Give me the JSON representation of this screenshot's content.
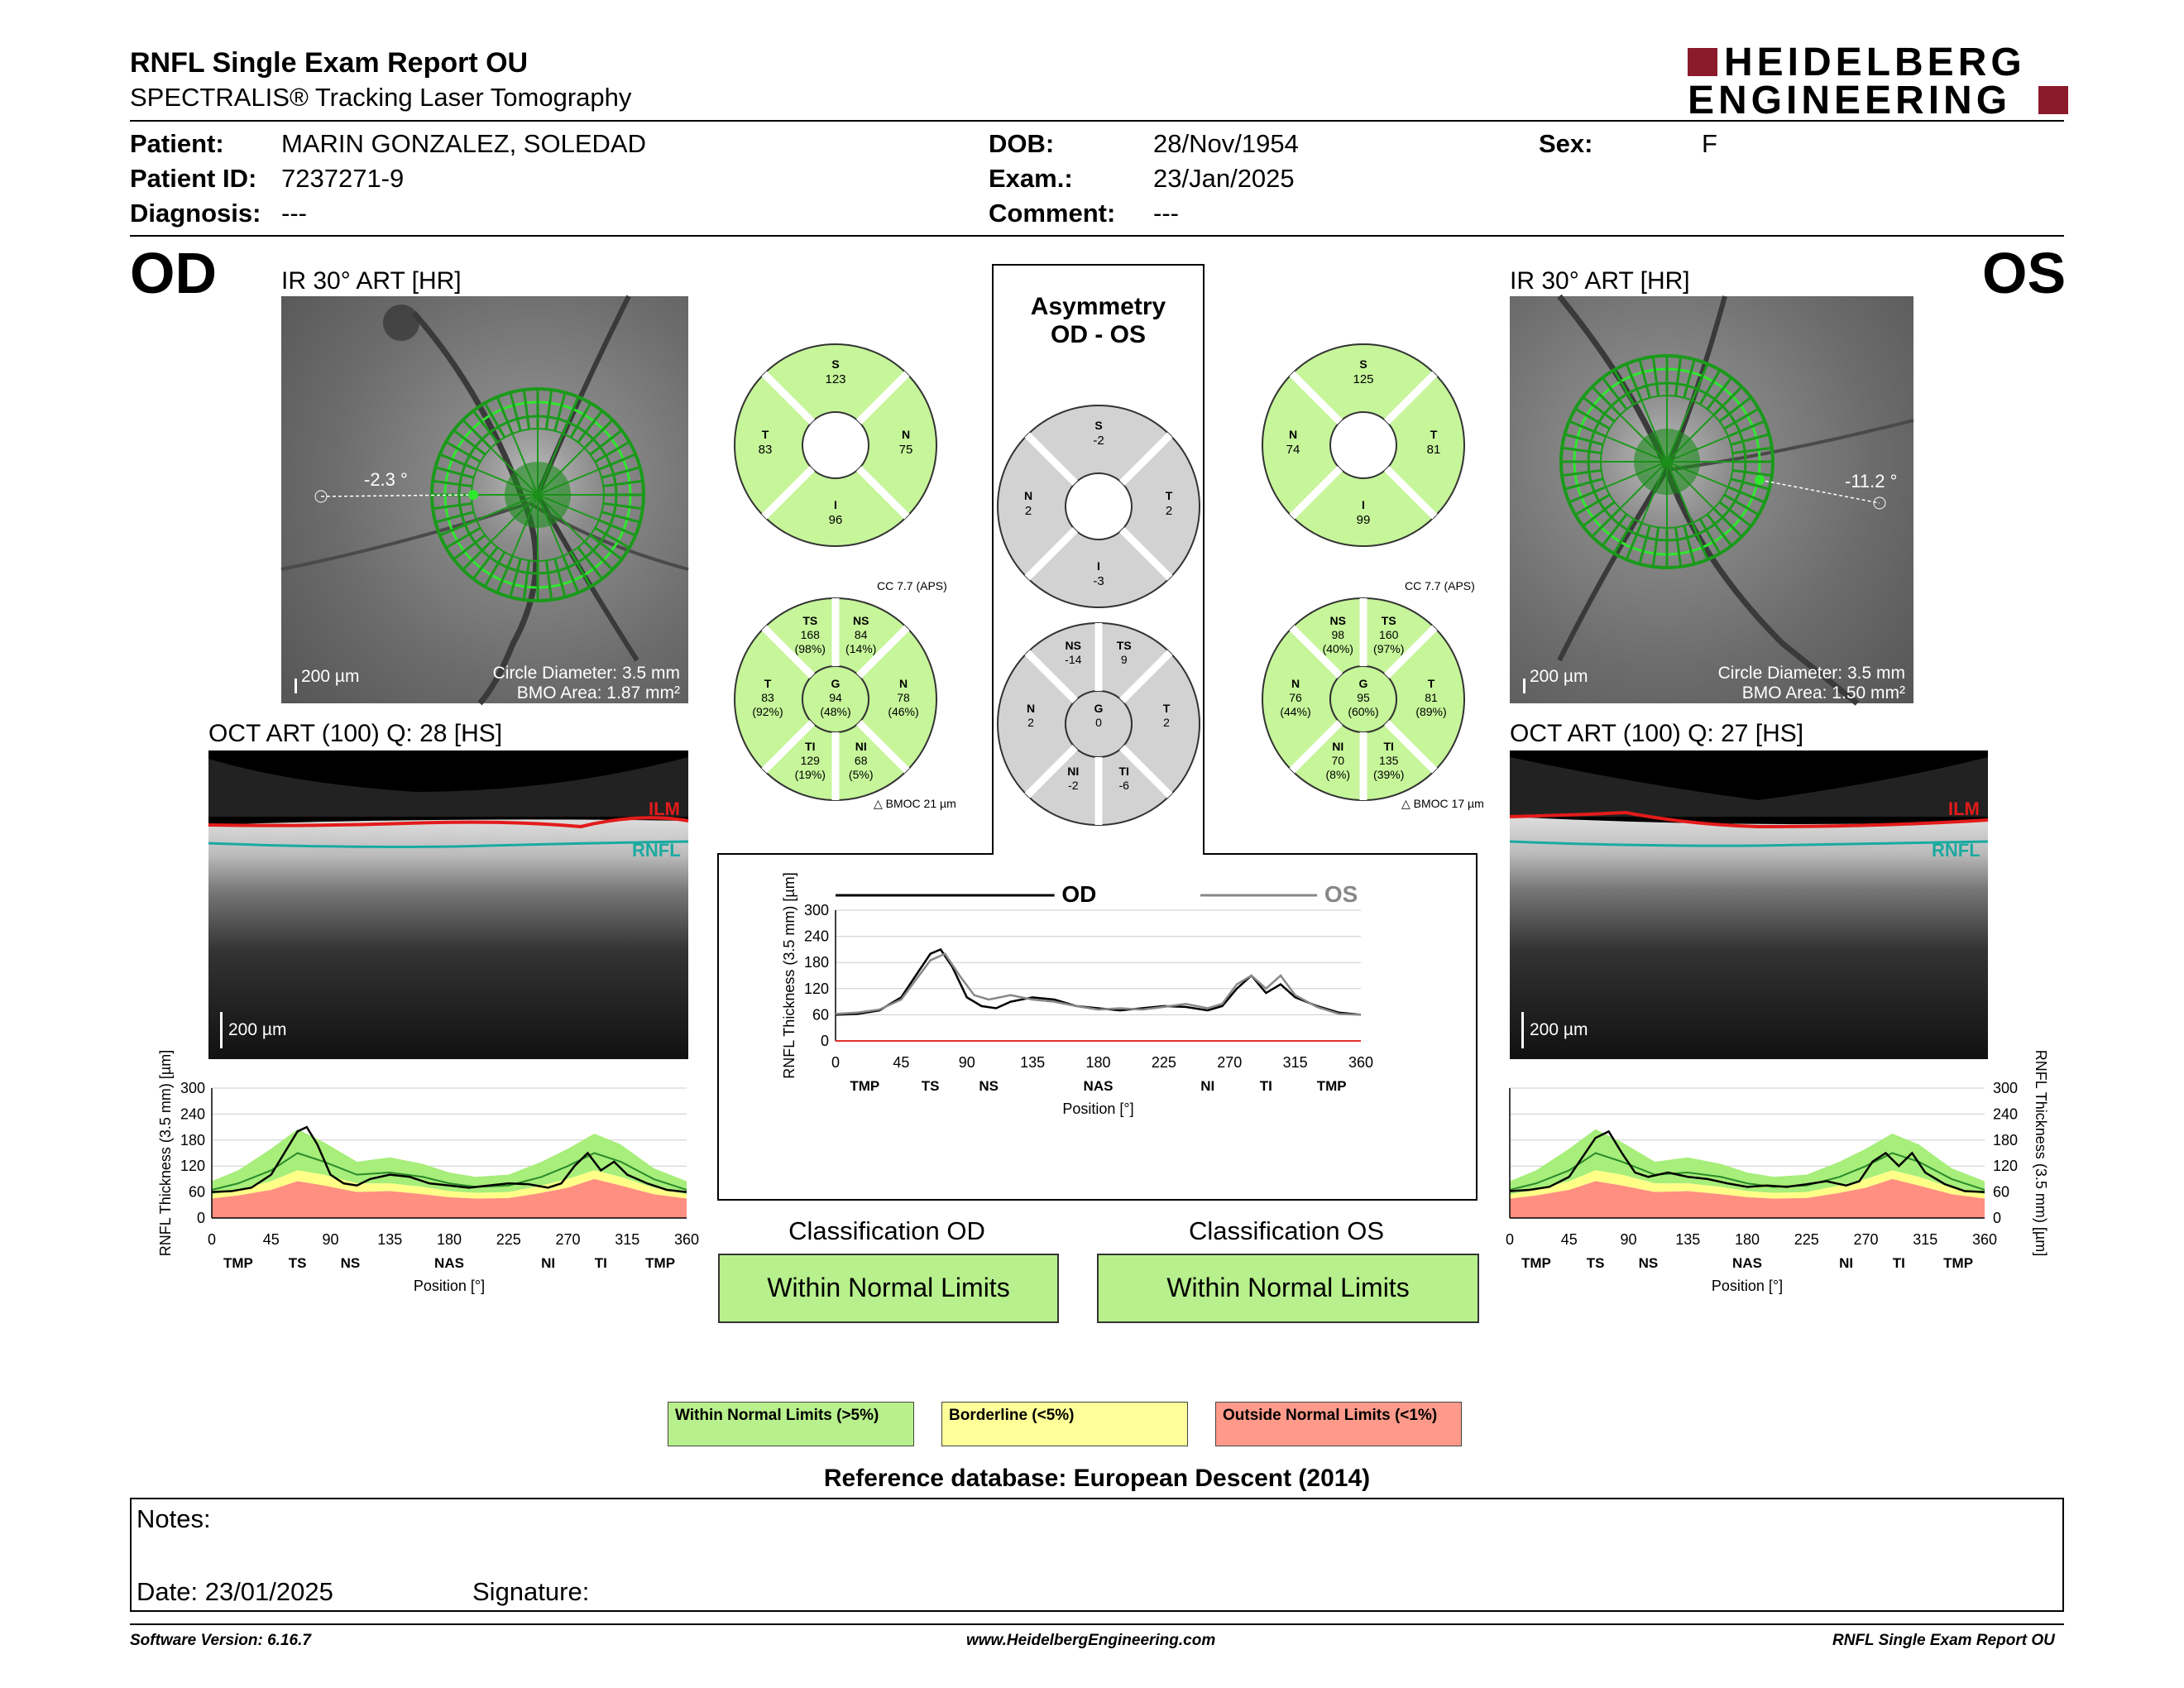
{
  "header": {
    "title": "RNFL Single Exam Report OU",
    "subtitle": "SPECTRALIS® Tracking Laser Tomography",
    "logo_line1": "HEIDELBERG",
    "logo_line2": "ENGINEERING",
    "brand_color": "#8b1a2b"
  },
  "patient": {
    "patient_label": "Patient:",
    "patient_value": "MARIN GONZALEZ, SOLEDAD",
    "id_label": "Patient ID:",
    "id_value": "7237271-9",
    "diagnosis_label": "Diagnosis:",
    "diagnosis_value": "---",
    "dob_label": "DOB:",
    "dob_value": "28/Nov/1954",
    "exam_label": "Exam.:",
    "exam_value": "23/Jan/2025",
    "comment_label": "Comment:",
    "comment_value": "---",
    "sex_label": "Sex:",
    "sex_value": "F"
  },
  "od": {
    "eye": "OD",
    "ir_caption": "IR 30° ART [HR]",
    "angle": "-2.3 °",
    "scale": "200 µm",
    "circle_diameter": "Circle Diameter: 3.5 mm",
    "bmo_area": "BMO Area: 1.87 mm²",
    "oct_caption": "OCT ART (100) Q: 28 [HS]",
    "ilm": "ILM",
    "rnfl": "RNFL",
    "oct_scale": "200 µm"
  },
  "os": {
    "eye": "OS",
    "ir_caption": "IR 30° ART [HR]",
    "angle": "-11.2 °",
    "scale": "200 µm",
    "circle_diameter": "Circle Diameter: 3.5 mm",
    "bmo_area": "BMO Area: 1.50 mm²",
    "oct_caption": "OCT ART (100) Q: 27 [HS]",
    "ilm": "ILM",
    "rnfl": "RNFL",
    "oct_scale": "200 µm"
  },
  "asymmetry": {
    "title1": "Asymmetry",
    "title2": "OD - OS"
  },
  "sectors": {
    "od_quad": {
      "S": "123",
      "N": "75",
      "I": "96",
      "T": "83"
    },
    "os_quad": {
      "S": "125",
      "T": "81",
      "I": "99",
      "N": "74"
    },
    "asym_quad": {
      "S": "-2",
      "T": "2",
      "I": "-3",
      "N": "2"
    },
    "od_six": {
      "TS": [
        "168",
        "(98%)"
      ],
      "NS": [
        "84",
        "(14%)"
      ],
      "N": [
        "78",
        "(46%)"
      ],
      "NI": [
        "68",
        "(5%)"
      ],
      "TI": [
        "129",
        "(19%)"
      ],
      "T": [
        "83",
        "(92%)"
      ],
      "G": [
        "94",
        "(48%)"
      ]
    },
    "os_six": {
      "NS": [
        "98",
        "(40%)"
      ],
      "TS": [
        "160",
        "(97%)"
      ],
      "T": [
        "81",
        "(89%)"
      ],
      "TI": [
        "135",
        "(39%)"
      ],
      "NI": [
        "70",
        "(8%)"
      ],
      "N": [
        "76",
        "(44%)"
      ],
      "G": [
        "95",
        "(60%)"
      ]
    },
    "asym_six": {
      "NS": "-14",
      "TS": "9",
      "T": "2",
      "TI": "-6",
      "NI": "-2",
      "N": "2",
      "G": "0"
    },
    "cc": "CC 7.7 (APS)",
    "od_bmoc": "BMOC 21 µm",
    "os_bmoc": "BMOC 17 µm",
    "green": "#c6f59a",
    "gray": "#d2d2d2"
  },
  "chart_data": [
    {
      "type": "line",
      "title": "",
      "ylabel": "RNFL Thickness (3.5 mm) [µm]",
      "xlabel": "Position [°]",
      "xlim": [
        0,
        360
      ],
      "ylim": [
        0,
        300
      ],
      "xticks": [
        0,
        45,
        90,
        135,
        180,
        225,
        270,
        315,
        360
      ],
      "yticks": [
        0,
        60,
        120,
        180,
        240,
        300
      ],
      "sector_labels": [
        {
          "x": 20,
          "label": "TMP"
        },
        {
          "x": 65,
          "label": "TS"
        },
        {
          "x": 105,
          "label": "NS"
        },
        {
          "x": 180,
          "label": "NAS"
        },
        {
          "x": 255,
          "label": "NI"
        },
        {
          "x": 295,
          "label": "TI"
        },
        {
          "x": 340,
          "label": "TMP"
        }
      ],
      "legend": [
        "OD",
        "OS"
      ],
      "series": [
        {
          "name": "OD",
          "color": "#000000",
          "x": [
            0,
            15,
            30,
            45,
            55,
            65,
            72,
            80,
            90,
            100,
            110,
            120,
            135,
            150,
            165,
            180,
            195,
            210,
            225,
            240,
            255,
            265,
            275,
            285,
            295,
            305,
            315,
            330,
            345,
            360
          ],
          "y": [
            60,
            62,
            70,
            100,
            150,
            200,
            210,
            170,
            100,
            80,
            75,
            90,
            100,
            95,
            80,
            75,
            70,
            75,
            80,
            78,
            70,
            80,
            120,
            150,
            110,
            130,
            100,
            80,
            65,
            60
          ]
        },
        {
          "name": "OS",
          "color": "#888888",
          "x": [
            0,
            15,
            30,
            45,
            55,
            65,
            75,
            85,
            95,
            105,
            120,
            135,
            150,
            165,
            180,
            195,
            210,
            225,
            240,
            255,
            265,
            275,
            285,
            295,
            305,
            315,
            330,
            345,
            360
          ],
          "y": [
            62,
            65,
            72,
            95,
            140,
            185,
            200,
            150,
            105,
            95,
            105,
            95,
            90,
            80,
            72,
            75,
            72,
            78,
            85,
            75,
            85,
            130,
            150,
            120,
            150,
            105,
            78,
            62,
            60
          ]
        }
      ]
    },
    {
      "type": "area",
      "title": "",
      "ylabel": "RNFL Thickness (3.5 mm) [µm]",
      "xlabel": "Position [°]",
      "xlim": [
        0,
        360
      ],
      "ylim": [
        0,
        300
      ],
      "xticks": [
        0,
        45,
        90,
        135,
        180,
        225,
        270,
        315,
        360
      ],
      "yticks": [
        0,
        60,
        120,
        180,
        240,
        300
      ],
      "sector_labels": [
        {
          "x": 20,
          "label": "TMP"
        },
        {
          "x": 65,
          "label": "TS"
        },
        {
          "x": 105,
          "label": "NS"
        },
        {
          "x": 180,
          "label": "NAS"
        },
        {
          "x": 255,
          "label": "NI"
        },
        {
          "x": 295,
          "label": "TI"
        },
        {
          "x": 340,
          "label": "TMP"
        }
      ],
      "series": [
        {
          "name": "OD",
          "color": "#000000",
          "x": [
            0,
            15,
            30,
            45,
            55,
            65,
            72,
            80,
            90,
            100,
            110,
            120,
            135,
            150,
            165,
            180,
            195,
            210,
            225,
            240,
            255,
            265,
            275,
            285,
            295,
            305,
            315,
            330,
            345,
            360
          ],
          "y": [
            60,
            62,
            70,
            100,
            150,
            200,
            210,
            170,
            100,
            80,
            75,
            90,
            100,
            95,
            80,
            75,
            70,
            75,
            80,
            78,
            70,
            80,
            120,
            150,
            110,
            130,
            100,
            80,
            65,
            60
          ]
        }
      ]
    },
    {
      "type": "area",
      "title": "",
      "ylabel": "RNFL Thickness (3.5 mm) [µm]",
      "xlabel": "Position [°]",
      "xlim": [
        0,
        360
      ],
      "ylim": [
        0,
        300
      ],
      "xticks": [
        0,
        45,
        90,
        135,
        180,
        225,
        270,
        315,
        360
      ],
      "yticks": [
        0,
        60,
        120,
        180,
        240,
        300
      ],
      "sector_labels": [
        {
          "x": 20,
          "label": "TMP"
        },
        {
          "x": 65,
          "label": "TS"
        },
        {
          "x": 105,
          "label": "NS"
        },
        {
          "x": 180,
          "label": "NAS"
        },
        {
          "x": 255,
          "label": "NI"
        },
        {
          "x": 295,
          "label": "TI"
        },
        {
          "x": 340,
          "label": "TMP"
        }
      ],
      "series": [
        {
          "name": "OS",
          "color": "#000000",
          "x": [
            0,
            15,
            30,
            45,
            55,
            65,
            75,
            85,
            95,
            105,
            120,
            135,
            150,
            165,
            180,
            195,
            210,
            225,
            240,
            255,
            265,
            275,
            285,
            295,
            305,
            315,
            330,
            345,
            360
          ],
          "y": [
            62,
            65,
            72,
            95,
            140,
            185,
            200,
            150,
            105,
            95,
            105,
            95,
            90,
            80,
            72,
            75,
            72,
            78,
            85,
            75,
            85,
            130,
            150,
            120,
            150,
            105,
            78,
            62,
            60
          ]
        }
      ]
    }
  ],
  "normative": {
    "x": [
      0,
      20,
      45,
      65,
      85,
      110,
      135,
      160,
      180,
      200,
      225,
      250,
      270,
      290,
      310,
      335,
      360
    ],
    "green_top": [
      85,
      110,
      160,
      205,
      175,
      130,
      140,
      125,
      105,
      95,
      100,
      130,
      160,
      195,
      170,
      115,
      85
    ],
    "mean": [
      65,
      80,
      110,
      150,
      130,
      100,
      105,
      95,
      80,
      72,
      75,
      95,
      120,
      150,
      130,
      90,
      65
    ],
    "yellow_top": [
      55,
      65,
      85,
      110,
      100,
      80,
      80,
      72,
      62,
      58,
      60,
      75,
      90,
      110,
      95,
      70,
      55
    ],
    "red_top": [
      45,
      52,
      65,
      85,
      75,
      60,
      62,
      55,
      48,
      45,
      46,
      58,
      70,
      90,
      75,
      55,
      45
    ]
  },
  "classification": {
    "od_title": "Classification OD",
    "od_value": "Within Normal Limits",
    "os_title": "Classification OS",
    "os_value": "Within Normal Limits"
  },
  "legend": {
    "wnl": "Within Normal Limits (>5%)",
    "wnl_color": "#b7f08c",
    "bl": "Borderline (<5%)",
    "bl_color": "#ffff99",
    "onl": "Outside Normal Limits (<1%)",
    "onl_color": "#ff9a8a"
  },
  "reference": "Reference database: European Descent (2014)",
  "notes": {
    "notes_label": "Notes:",
    "date_label": "Date: 23/01/2025",
    "signature_label": "Signature:"
  },
  "footer": {
    "version": "Software Version: 6.16.7",
    "url": "www.HeidelbergEngineering.com",
    "report": "RNFL Single Exam Report OU"
  }
}
